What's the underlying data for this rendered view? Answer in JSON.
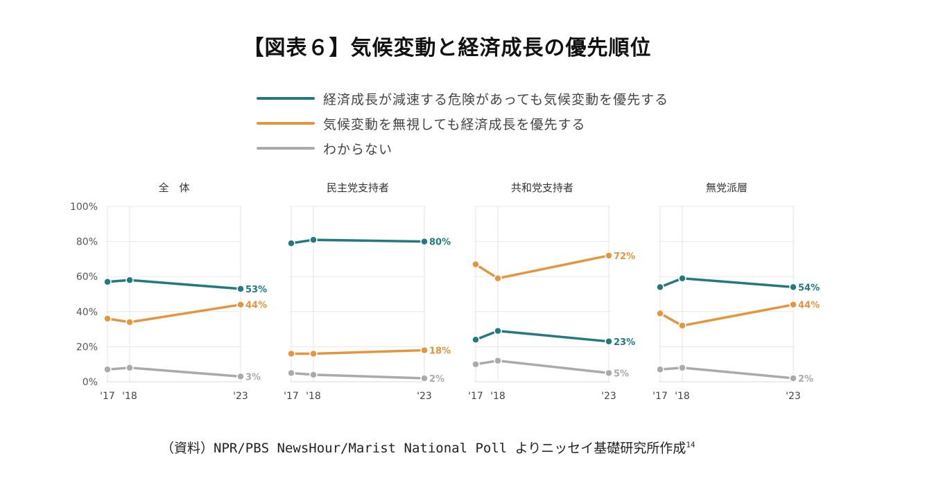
{
  "title": "【図表６】気候変動と経済成長の優先順位",
  "legend": [
    {
      "label": "経済成長が減速する危険があっても気候変動を優先する",
      "color": "#23797b"
    },
    {
      "label": "気候変動を無視しても経済成長を優先する",
      "color": "#e3953f"
    },
    {
      "label": "わからない",
      "color": "#aaaaaa"
    }
  ],
  "source": {
    "text": "（資料）NPR/PBS NewsHour/Marist National Poll よりニッセイ基礎研究所作成",
    "footnote": "14"
  },
  "chart_data": {
    "type": "line",
    "ylim": [
      0,
      100
    ],
    "yticks": [
      "0%",
      "20%",
      "40%",
      "60%",
      "80%",
      "100%"
    ],
    "x_labels": [
      "'17",
      "'18",
      "'23"
    ],
    "x_values": [
      2017,
      2018,
      2023
    ],
    "series_colors": [
      "#23797b",
      "#e3953f",
      "#aaaaaa"
    ],
    "panels": [
      {
        "title": "全　体",
        "series": [
          {
            "name": "経済成長が減速する危険があっても気候変動を優先する",
            "values": [
              57,
              58,
              53
            ],
            "end_label": "53%"
          },
          {
            "name": "気候変動を無視しても経済成長を優先する",
            "values": [
              36,
              34,
              44
            ],
            "end_label": "44%"
          },
          {
            "name": "わからない",
            "values": [
              7,
              8,
              3
            ],
            "end_label": "3%"
          }
        ]
      },
      {
        "title": "民主党支持者",
        "series": [
          {
            "name": "経済成長が減速する危険があっても気候変動を優先する",
            "values": [
              79,
              81,
              80
            ],
            "end_label": "80%"
          },
          {
            "name": "気候変動を無視しても経済成長を優先する",
            "values": [
              16,
              16,
              18
            ],
            "end_label": "18%"
          },
          {
            "name": "わからない",
            "values": [
              5,
              4,
              2
            ],
            "end_label": "2%"
          }
        ]
      },
      {
        "title": "共和党支持者",
        "series": [
          {
            "name": "経済成長が減速する危険があっても気候変動を優先する",
            "values": [
              24,
              29,
              23
            ],
            "end_label": "23%"
          },
          {
            "name": "気候変動を無視しても経済成長を優先する",
            "values": [
              67,
              59,
              72
            ],
            "end_label": "72%"
          },
          {
            "name": "わからない",
            "values": [
              10,
              12,
              5
            ],
            "end_label": "5%"
          }
        ]
      },
      {
        "title": "無党派層",
        "series": [
          {
            "name": "経済成長が減速する危険があっても気候変動を優先する",
            "values": [
              54,
              59,
              54
            ],
            "end_label": "54%"
          },
          {
            "name": "気候変動を無視しても経済成長を優先する",
            "values": [
              39,
              32,
              44
            ],
            "end_label": "44%"
          },
          {
            "name": "わからない",
            "values": [
              7,
              8,
              2
            ],
            "end_label": "2%"
          }
        ]
      }
    ]
  }
}
